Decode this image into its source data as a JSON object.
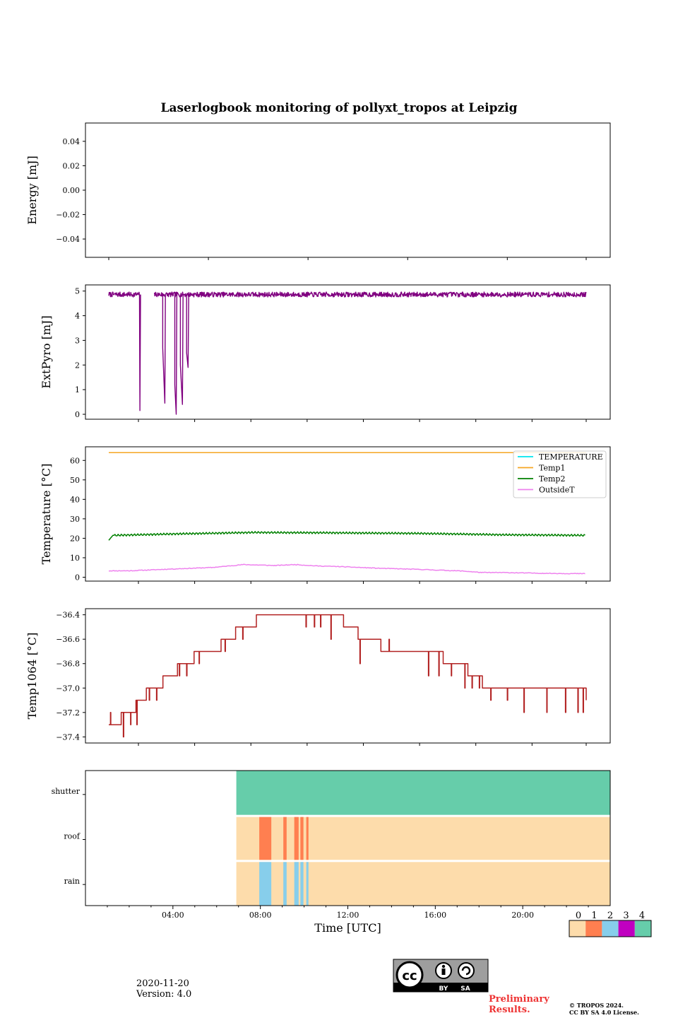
{
  "footer": {
    "date": "2020-11-20",
    "version": "Version: 4.0",
    "preliminary_line1": "Preliminary",
    "preliminary_line2": "Results.",
    "copyright_line1": "© TROPOS 2024.",
    "copyright_line2": "CC BY SA 4.0 License.",
    "license_badge": {
      "cc": "cc",
      "by": "BY",
      "sa": "SA"
    }
  },
  "chart_data": [
    {
      "id": "energy",
      "type": "line",
      "title": "Laserlogbook monitoring of pollyxt_tropos at Leipzig",
      "ylabel": "Energy [mJ]",
      "ylim": [
        -0.055,
        0.055
      ],
      "yticks": [
        -0.04,
        -0.02,
        0.0,
        0.02,
        0.04
      ],
      "ytick_labels": [
        "−0.04",
        "−0.02",
        "0.00",
        "0.02",
        "0.04"
      ],
      "series": []
    },
    {
      "id": "extpyro",
      "type": "line",
      "ylabel": "ExtPyro [mJ]",
      "ylim": [
        -0.2,
        5.25
      ],
      "yticks": [
        0,
        1,
        2,
        3,
        4,
        5
      ],
      "series": [
        {
          "name": "ExtPyro",
          "color": "#800080",
          "base": 4.86,
          "noise": 0.05,
          "gap_after_hours": 2.5,
          "gap_before_hours": 3.2,
          "dropouts": [
            {
              "t": [
                2.48,
                2.5
              ],
              "v": [
                4.85,
                0.15
              ]
            },
            {
              "t": [
                3.6,
                3.7
              ],
              "v": [
                2.7,
                0.45
              ]
            },
            {
              "t": [
                4.18,
                4.25
              ],
              "v": [
                1.2,
                0.0
              ]
            },
            {
              "t": [
                4.45,
                4.55
              ],
              "v": [
                2.0,
                0.4
              ]
            },
            {
              "t": [
                4.75,
                4.82
              ],
              "v": [
                2.5,
                1.9
              ]
            }
          ]
        }
      ]
    },
    {
      "id": "temperature",
      "type": "line",
      "ylabel": "Temperature [°C]",
      "ylim": [
        -2,
        67
      ],
      "yticks": [
        0,
        10,
        20,
        30,
        40,
        50,
        60
      ],
      "legend": {
        "location": "top-right"
      },
      "series": [
        {
          "name": "TEMPERATURE",
          "color": "#00e5ee",
          "values": []
        },
        {
          "name": "Temp1",
          "color": "#f5a623",
          "t": [
            1.0,
            24.0
          ],
          "values": [
            64.0,
            64.0
          ]
        },
        {
          "name": "Temp2",
          "color": "#008000",
          "base": 22.2,
          "wiggle": 0.5,
          "t": [
            1.0,
            1.2,
            4.0,
            8.0,
            12.0,
            16.0,
            20.0,
            24.0
          ],
          "values": [
            19.0,
            21.5,
            22.2,
            23.0,
            22.8,
            22.5,
            21.8,
            21.5
          ]
        },
        {
          "name": "OutsideT",
          "color": "#ee82ee",
          "t": [
            1.0,
            2.0,
            4.0,
            6.0,
            7.5,
            9.0,
            10.0,
            11.0,
            12.0,
            14.0,
            16.0,
            18.0,
            19.0,
            20.0,
            22.0,
            24.0
          ],
          "values": [
            3.3,
            3.3,
            4.2,
            5.0,
            6.5,
            6.0,
            6.5,
            5.8,
            5.5,
            4.6,
            4.0,
            3.2,
            2.4,
            2.4,
            2.0,
            1.8
          ]
        }
      ]
    },
    {
      "id": "temp1064",
      "type": "line",
      "ylabel": "Temp1064 [°C]",
      "ylim": [
        -37.45,
        -36.35
      ],
      "yticks": [
        -37.4,
        -37.2,
        -37.0,
        -36.8,
        -36.6,
        -36.4
      ],
      "ytick_labels": [
        "−37.4",
        "−37.2",
        "−37.0",
        "−36.8",
        "−36.6",
        "−36.4"
      ],
      "series": [
        {
          "name": "Temp1064",
          "color": "#b22222",
          "step_t": [
            1.0,
            1.6,
            2.3,
            2.8,
            3.6,
            4.3,
            5.1,
            6.4,
            7.1,
            8.1,
            11.2,
            12.3,
            13.0,
            14.1,
            17.1,
            18.3,
            19.0,
            24.0
          ],
          "step_v": [
            -37.3,
            -37.2,
            -37.1,
            -37.0,
            -36.9,
            -36.8,
            -36.7,
            -36.6,
            -36.5,
            -36.4,
            -36.4,
            -36.5,
            -36.6,
            -36.7,
            -36.8,
            -36.9,
            -37.0,
            -37.1
          ],
          "spikes": [
            {
              "t": 1.08,
              "v": -37.2
            },
            {
              "t": 1.7,
              "v": -37.4
            },
            {
              "t": 2.05,
              "v": -37.3
            },
            {
              "t": 2.35,
              "v": -37.3
            },
            {
              "t": 2.6,
              "v": -37.1
            },
            {
              "t": 2.95,
              "v": -37.1
            },
            {
              "t": 3.3,
              "v": -37.1
            },
            {
              "t": 4.4,
              "v": -36.9
            },
            {
              "t": 4.75,
              "v": -36.9
            },
            {
              "t": 5.35,
              "v": -36.8
            },
            {
              "t": 6.6,
              "v": -36.7
            },
            {
              "t": 7.45,
              "v": -36.6
            },
            {
              "t": 10.5,
              "v": -36.5
            },
            {
              "t": 10.9,
              "v": -36.5
            },
            {
              "t": 11.2,
              "v": -36.5
            },
            {
              "t": 11.7,
              "v": -36.6
            },
            {
              "t": 12.35,
              "v": -36.5
            },
            {
              "t": 13.1,
              "v": -36.8
            },
            {
              "t": 13.9,
              "v": -36.6
            },
            {
              "t": 14.5,
              "v": -36.6
            },
            {
              "t": 16.4,
              "v": -36.9
            },
            {
              "t": 16.9,
              "v": -36.9
            },
            {
              "t": 17.5,
              "v": -36.9
            },
            {
              "t": 18.15,
              "v": -37.0
            },
            {
              "t": 18.5,
              "v": -37.0
            },
            {
              "t": 18.85,
              "v": -37.0
            },
            {
              "t": 19.4,
              "v": -37.1
            },
            {
              "t": 20.2,
              "v": -37.1
            },
            {
              "t": 21.0,
              "v": -37.2
            },
            {
              "t": 22.1,
              "v": -37.2
            },
            {
              "t": 23.0,
              "v": -37.2
            },
            {
              "t": 23.6,
              "v": -37.2
            },
            {
              "t": 23.85,
              "v": -37.2
            }
          ]
        }
      ]
    },
    {
      "id": "status",
      "type": "heatmap",
      "xlabel": "Time [UTC]",
      "xlim": [
        0,
        24
      ],
      "xticks": [
        4,
        8,
        12,
        16,
        20
      ],
      "xtick_labels": [
        "04:00",
        "08:00",
        "12:00",
        "16:00",
        "20:00"
      ],
      "rows": [
        "shutter",
        "roof",
        "rain"
      ],
      "data_start_hours": 6.9,
      "default_values": {
        "shutter": 4,
        "roof": 0,
        "rain": 0
      },
      "events": [
        {
          "row": "roof",
          "t0": 7.95,
          "t1": 8.5,
          "value": 1
        },
        {
          "row": "roof",
          "t0": 9.05,
          "t1": 9.2,
          "value": 1
        },
        {
          "row": "roof",
          "t0": 9.55,
          "t1": 9.75,
          "value": 1
        },
        {
          "row": "roof",
          "t0": 9.83,
          "t1": 9.97,
          "value": 1
        },
        {
          "row": "roof",
          "t0": 10.1,
          "t1": 10.2,
          "value": 1
        },
        {
          "row": "rain",
          "t0": 7.95,
          "t1": 8.5,
          "value": 2
        },
        {
          "row": "rain",
          "t0": 9.05,
          "t1": 9.2,
          "value": 2
        },
        {
          "row": "rain",
          "t0": 9.55,
          "t1": 9.75,
          "value": 2
        },
        {
          "row": "rain",
          "t0": 9.83,
          "t1": 9.97,
          "value": 2
        },
        {
          "row": "rain",
          "t0": 10.1,
          "t1": 10.2,
          "value": 2
        }
      ],
      "colorbar": {
        "ticks": [
          "0",
          "1",
          "2",
          "3",
          "4"
        ],
        "colors": [
          "#fddcab",
          "#ff7f50",
          "#87ceeb",
          "#c000c0",
          "#66cdaa"
        ]
      }
    }
  ],
  "line_x_axis": {
    "xlim": [
      0,
      24
    ],
    "xticks": [
      1,
      4,
      8,
      12,
      16,
      20,
      24
    ]
  }
}
